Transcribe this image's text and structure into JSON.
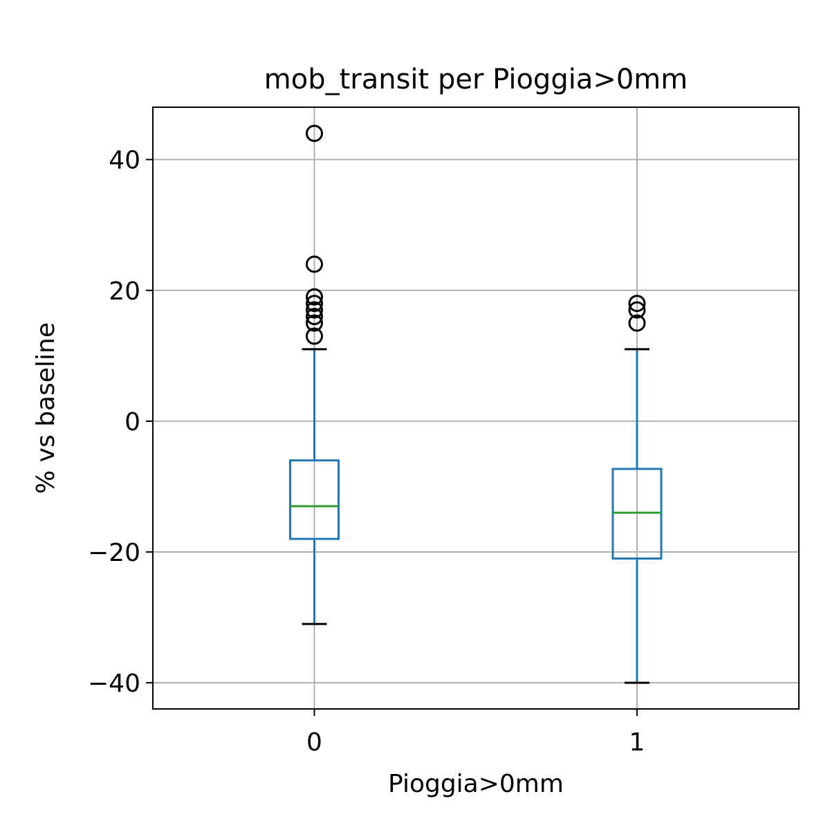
{
  "chart_data": {
    "type": "box",
    "title": "mob_transit per Pioggia>0mm",
    "xlabel": "Pioggia>0mm",
    "ylabel": "% vs baseline",
    "categories": [
      "0",
      "1"
    ],
    "ylim": [
      -44,
      48
    ],
    "yticks": [
      -40,
      -20,
      0,
      20,
      40
    ],
    "ytick_labels": [
      "−40",
      "−20",
      "0",
      "20",
      "40"
    ],
    "grid": true,
    "boxes": [
      {
        "category": "0",
        "whisker_low": -31,
        "q1": -18,
        "median": -13,
        "q3": -6,
        "whisker_high": 11,
        "outliers": [
          13,
          15,
          16,
          17,
          18,
          19,
          24,
          44
        ]
      },
      {
        "category": "1",
        "whisker_low": -40,
        "q1": -21,
        "median": -14,
        "q3": -7.3,
        "whisker_high": 11,
        "outliers": [
          15,
          17,
          18
        ]
      }
    ],
    "colors": {
      "box": "#1f77b4",
      "median": "#2ca02c",
      "caps": "#000000",
      "outliers": "#000000",
      "grid": "#b0b0b0"
    }
  }
}
